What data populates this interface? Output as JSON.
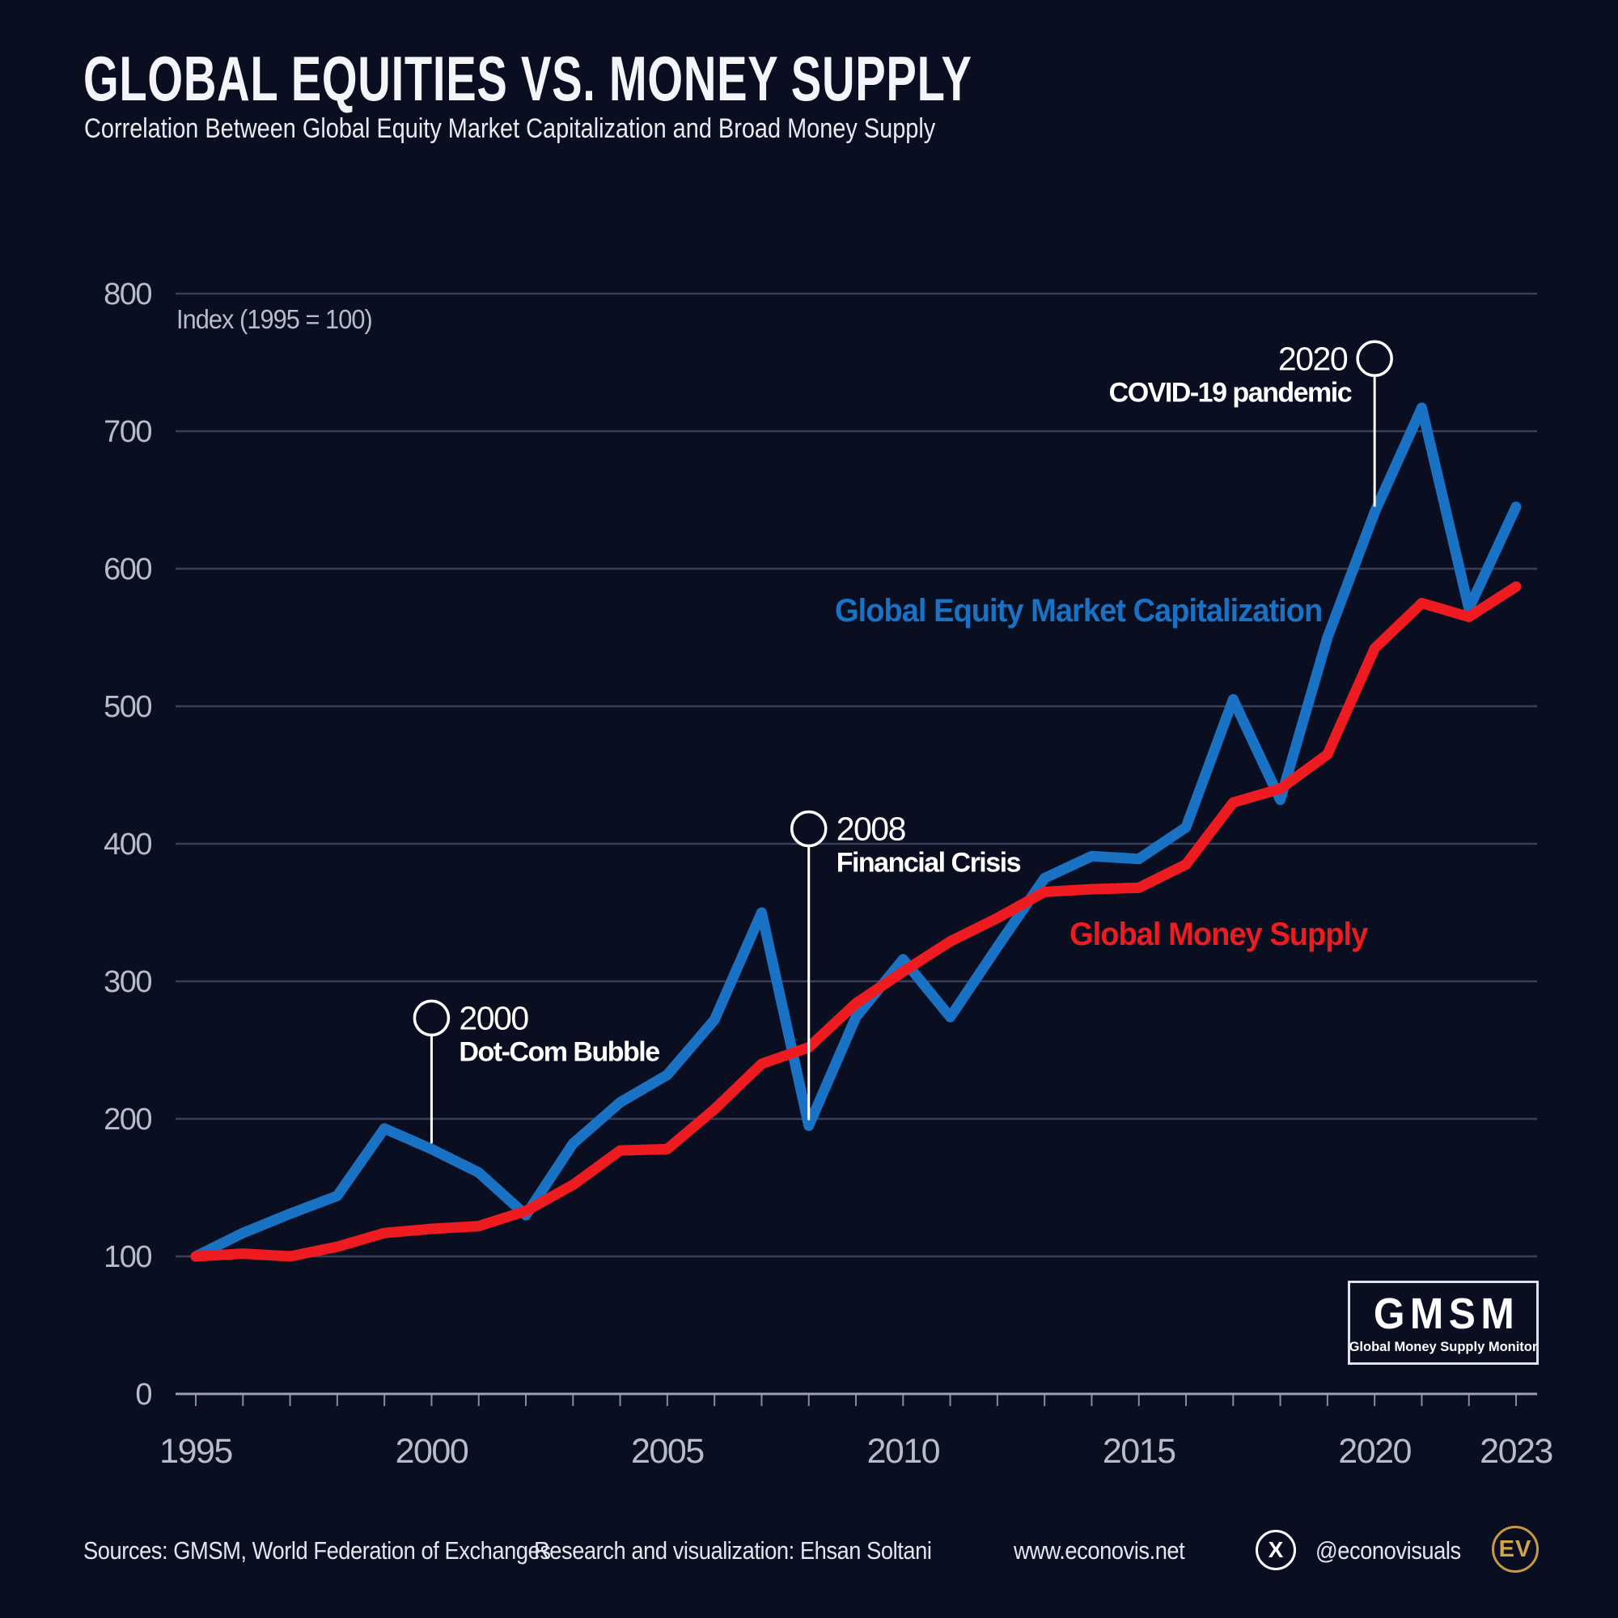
{
  "header": {
    "title": "GLOBAL EQUITIES VS. MONEY SUPPLY",
    "subtitle": "Correlation Between Global Equity Market Capitalization and Broad Money Supply"
  },
  "chart_data": {
    "type": "line",
    "index_note": "Index (1995 = 100)",
    "x_range": [
      1995,
      2023
    ],
    "ylim": [
      0,
      800
    ],
    "grid": "horizontal",
    "years": [
      1995,
      1996,
      1997,
      1998,
      1999,
      2000,
      2001,
      2002,
      2003,
      2004,
      2005,
      2006,
      2007,
      2008,
      2009,
      2010,
      2011,
      2012,
      2013,
      2014,
      2015,
      2016,
      2017,
      2018,
      2019,
      2020,
      2021,
      2022,
      2023
    ],
    "series": [
      {
        "name": "Global Equity Market Capitalization",
        "color": "#1a72c5",
        "values": [
          100,
          117,
          131,
          144,
          193,
          178,
          161,
          130,
          182,
          212,
          232,
          272,
          350,
          195,
          274,
          316,
          274,
          325,
          375,
          391,
          389,
          412,
          505,
          432,
          550,
          641,
          717,
          571,
          645
        ]
      },
      {
        "name": "Global Money Supply",
        "color": "#ee1b21",
        "values": [
          100,
          102,
          100,
          107,
          117,
          120,
          122,
          133,
          152,
          177,
          178,
          207,
          240,
          252,
          284,
          307,
          329,
          346,
          365,
          367,
          368,
          385,
          430,
          440,
          465,
          542,
          575,
          565,
          587
        ]
      }
    ],
    "y_ticks": [
      0,
      100,
      200,
      300,
      400,
      500,
      600,
      700,
      800
    ],
    "y_gridlines": [
      100,
      200,
      300,
      400,
      500,
      600,
      700,
      800
    ],
    "x_ticks": [
      1995,
      2000,
      2005,
      2010,
      2015,
      2020,
      2023
    ],
    "annotations": [
      {
        "year": 2000,
        "year_label": "2000",
        "event": "Dot-Com Bubble",
        "value": 178,
        "side": "right"
      },
      {
        "year": 2008,
        "year_label": "2008",
        "event": "Financial Crisis",
        "value": 195,
        "side": "right"
      },
      {
        "year": 2020,
        "year_label": "2020",
        "event": "COVID-19 pandemic",
        "value": 641,
        "side": "left"
      }
    ]
  },
  "gmsm": {
    "acronym": "GMSM",
    "full_name": "Global Money Supply Monitor"
  },
  "footer": {
    "sources": "Sources: GMSM, World Federation of Exchanges",
    "research": "Research and visualization: Ehsan Soltani",
    "website": "www.econovis.net",
    "x_icon": "X",
    "x_handle": "@econovisuals",
    "ev_badge": "EV"
  },
  "colors": {
    "background": "#0a0e21",
    "grid": "#3b4059",
    "axis": "#9ba1b5",
    "tick_label": "#b7bcc9",
    "text": "#f4f5f8",
    "equity": "#1a72c5",
    "money": "#ee1b21",
    "annotation": "#ffffff",
    "gold": "#c9993f"
  }
}
